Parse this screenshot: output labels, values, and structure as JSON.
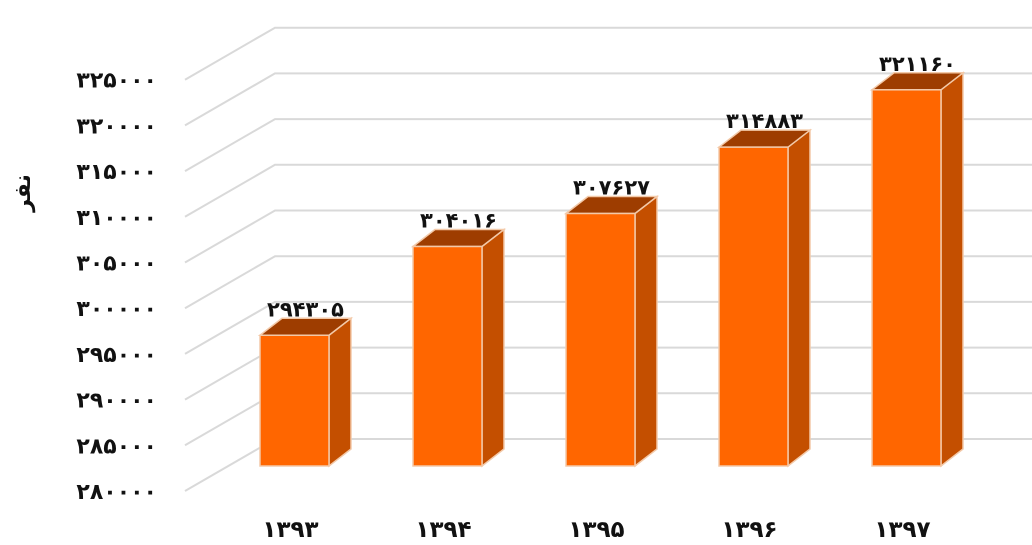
{
  "chart_data": {
    "type": "bar",
    "style": "3d-column",
    "categories": [
      "۱۳۹۳",
      "۱۳۹۴",
      "۱۳۹۵",
      "۱۳۹۶",
      "۱۳۹۷"
    ],
    "values": [
      294305,
      304016,
      307627,
      314883,
      321160
    ],
    "data_labels": [
      "۲۹۴۳۰۵",
      "۳۰۴۰۱۶",
      "۳۰۷۶۲۷",
      "۳۱۴۸۸۳",
      "۳۲۱۱۶۰"
    ],
    "ylim": [
      280000,
      325000
    ],
    "ytick_values": [
      280000,
      285000,
      290000,
      295000,
      300000,
      305000,
      310000,
      315000,
      320000,
      325000
    ],
    "ytick_labels": [
      "۲۸۰۰۰۰",
      "۲۸۵۰۰۰",
      "۲۹۰۰۰۰",
      "۲۹۵۰۰۰",
      "۳۰۰۰۰۰",
      "۳۰۵۰۰۰",
      "۳۱۰۰۰۰",
      "۳۱۵۰۰۰",
      "۳۲۰۰۰۰",
      "۳۲۵۰۰۰"
    ],
    "ylabel": "نفر",
    "grid": true,
    "legend": "none",
    "colors": {
      "front": "#FF6600",
      "side": "#C44F00",
      "top": "#9E3D00",
      "edge": "#F3C9A8",
      "grid": "#D9D9D9"
    }
  }
}
